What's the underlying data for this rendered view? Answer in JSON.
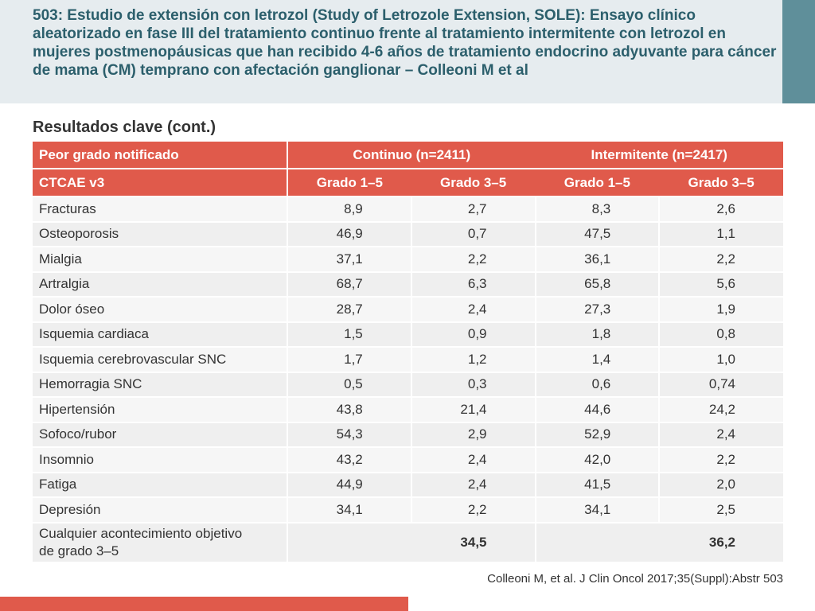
{
  "title": "503: Estudio de extensión con letrozol (Study of Letrozole Extension, SOLE): Ensayo clínico aleatorizado en fase III del tratamiento continuo frente al tratamiento intermitente con letrozol en mujeres postmenopáusicas que han recibido 4-6 años de tratamiento endocrino adyuvante para cáncer de mama (CM) temprano con afectación ganglionar – Colleoni M et al",
  "subtitle": "Resultados clave (cont.)",
  "table": {
    "header1": {
      "first": "Peor grado notificado",
      "group1": "Continuo (n=2411)",
      "group2": "Intermitente (n=2417)"
    },
    "header2": {
      "first": "CTCAE v3",
      "cols": [
        "Grado 1–5",
        "Grado 3–5",
        "Grado 1–5",
        "Grado 3–5"
      ]
    },
    "rows": [
      {
        "name": "Fracturas",
        "values": [
          "8,9",
          "2,7",
          "8,3",
          "2,6"
        ]
      },
      {
        "name": "Osteoporosis",
        "values": [
          "46,9",
          "0,7",
          "47,5",
          "1,1"
        ]
      },
      {
        "name": "Mialgia",
        "values": [
          "37,1",
          "2,2",
          "36,1",
          "2,2"
        ]
      },
      {
        "name": "Artralgia",
        "values": [
          "68,7",
          "6,3",
          "65,8",
          "5,6"
        ]
      },
      {
        "name": "Dolor óseo",
        "values": [
          "28,7",
          "2,4",
          "27,3",
          "1,9"
        ]
      },
      {
        "name": "Isquemia cardiaca",
        "values": [
          "1,5",
          "0,9",
          "1,8",
          "0,8"
        ]
      },
      {
        "name": "Isquemia cerebrovascular SNC",
        "values": [
          "1,7",
          "1,2",
          "1,4",
          "1,0"
        ]
      },
      {
        "name": "Hemorragia SNC",
        "values": [
          "0,5",
          "0,3",
          "0,6",
          "0,74"
        ]
      },
      {
        "name": "Hipertensión",
        "values": [
          "43,8",
          "21,4",
          "44,6",
          "24,2"
        ]
      },
      {
        "name": "Sofoco/rubor",
        "values": [
          "54,3",
          "2,9",
          "52,9",
          "2,4"
        ]
      },
      {
        "name": "Insomnio",
        "values": [
          "43,2",
          "2,4",
          "42,0",
          "2,2"
        ]
      },
      {
        "name": "Fatiga",
        "values": [
          "44,9",
          "2,4",
          "41,5",
          "2,0"
        ]
      },
      {
        "name": "Depresión",
        "values": [
          "34,1",
          "2,2",
          "34,1",
          "2,5"
        ]
      }
    ],
    "total_row": {
      "name_line1": "Cualquier acontecimiento objetivo",
      "name_line2": "de grado 3–5",
      "continuo_g35": "34,5",
      "intermitente_g35": "36,2"
    }
  },
  "citation": "Colleoni M, et al. J Clin Oncol 2017;35(Suppl):Abstr 503",
  "colors": {
    "accent_red": "#e05a4b",
    "title_teal": "#2c5f6c",
    "header_band": "#e6ecef",
    "accent_block": "#5f8f9a"
  }
}
